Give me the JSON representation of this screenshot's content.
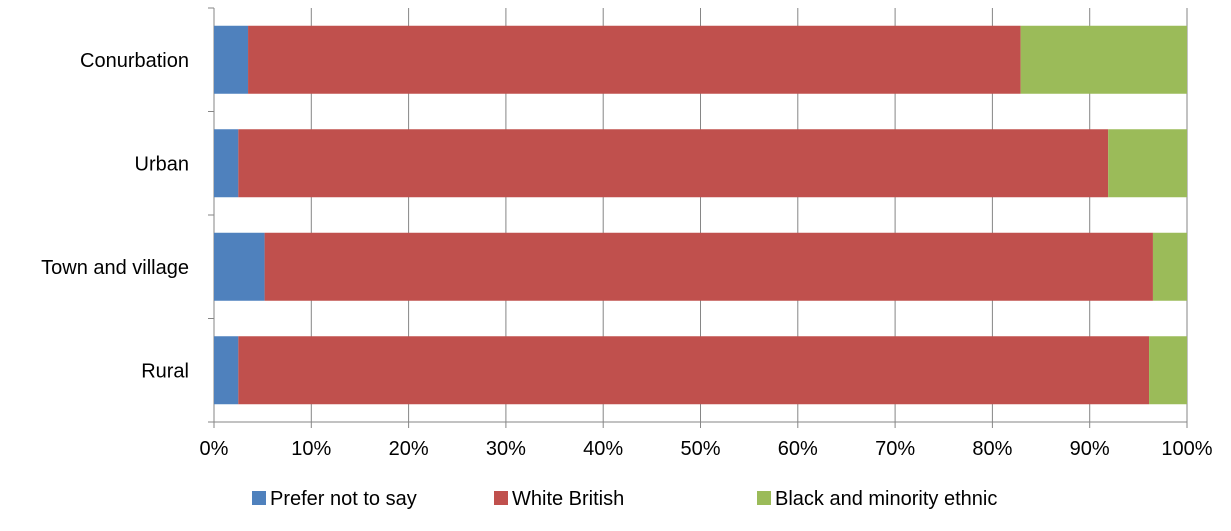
{
  "chart_data": {
    "type": "bar",
    "orientation": "horizontal",
    "stacked": "percent",
    "categories": [
      "Conurbation",
      "Urban",
      "Town and village",
      "Rural"
    ],
    "series": [
      {
        "name": "Prefer not to say",
        "color": "#4F81BD",
        "values": [
          3.5,
          2.5,
          5.2,
          2.5
        ]
      },
      {
        "name": "White British",
        "color": "#C0504D",
        "values": [
          79.4,
          89.4,
          91.3,
          93.6
        ]
      },
      {
        "name": "Black and minority ethnic",
        "color": "#9BBB59",
        "values": [
          17.1,
          8.1,
          3.5,
          3.9
        ]
      }
    ],
    "x_ticks": [
      "0%",
      "10%",
      "20%",
      "30%",
      "40%",
      "50%",
      "60%",
      "70%",
      "80%",
      "90%",
      "100%"
    ],
    "xlim": [
      0,
      100
    ],
    "grid": true,
    "legend_position": "bottom"
  }
}
